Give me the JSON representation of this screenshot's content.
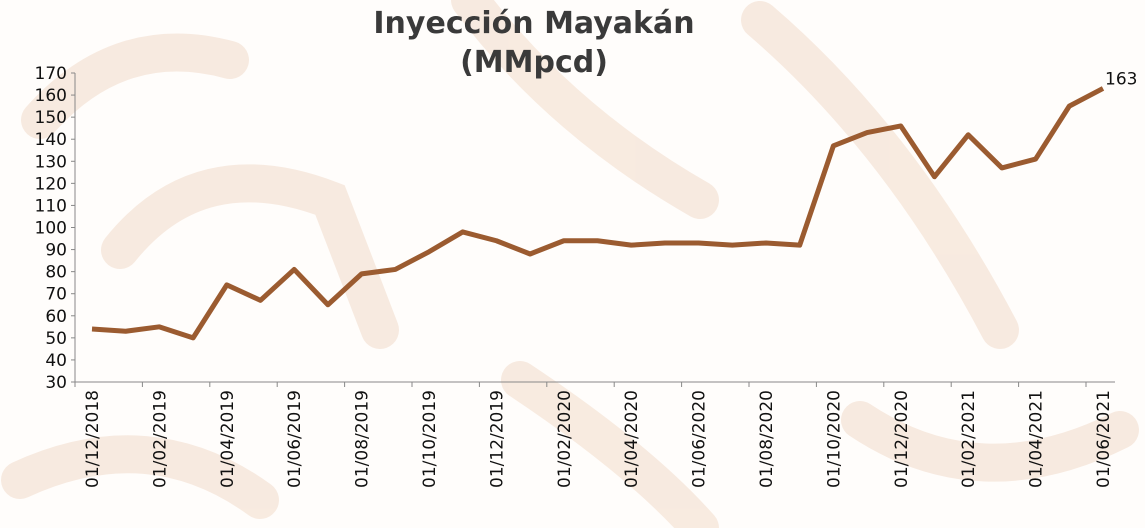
{
  "chart_data": {
    "type": "line",
    "title": "Inyección Mayakán",
    "subtitle": "(MMpcd)",
    "categories": [
      "01/12/2018",
      null,
      "01/02/2019",
      null,
      "01/04/2019",
      null,
      "01/06/2019",
      null,
      "01/08/2019",
      null,
      "01/10/2019",
      null,
      "01/12/2019",
      null,
      "01/02/2020",
      null,
      "01/04/2020",
      null,
      "01/06/2020",
      null,
      "01/08/2020",
      null,
      "01/10/2020",
      null,
      "01/12/2020",
      null,
      "01/02/2021",
      null,
      "01/04/2021",
      null,
      "01/06/2021"
    ],
    "series": [
      {
        "name": "Inyección Mayakán",
        "color": "#9b5b30",
        "values": [
          54,
          53,
          55,
          50,
          74,
          67,
          81,
          65,
          79,
          81,
          89,
          98,
          94,
          88,
          94,
          94,
          92,
          93,
          93,
          92,
          93,
          92,
          137,
          143,
          146,
          123,
          142,
          127,
          131,
          155,
          163
        ]
      }
    ],
    "ylim": [
      30,
      170
    ],
    "yticks": [
      30,
      40,
      50,
      60,
      70,
      80,
      90,
      100,
      110,
      120,
      130,
      140,
      150,
      160,
      170
    ],
    "grid": false
  }
}
